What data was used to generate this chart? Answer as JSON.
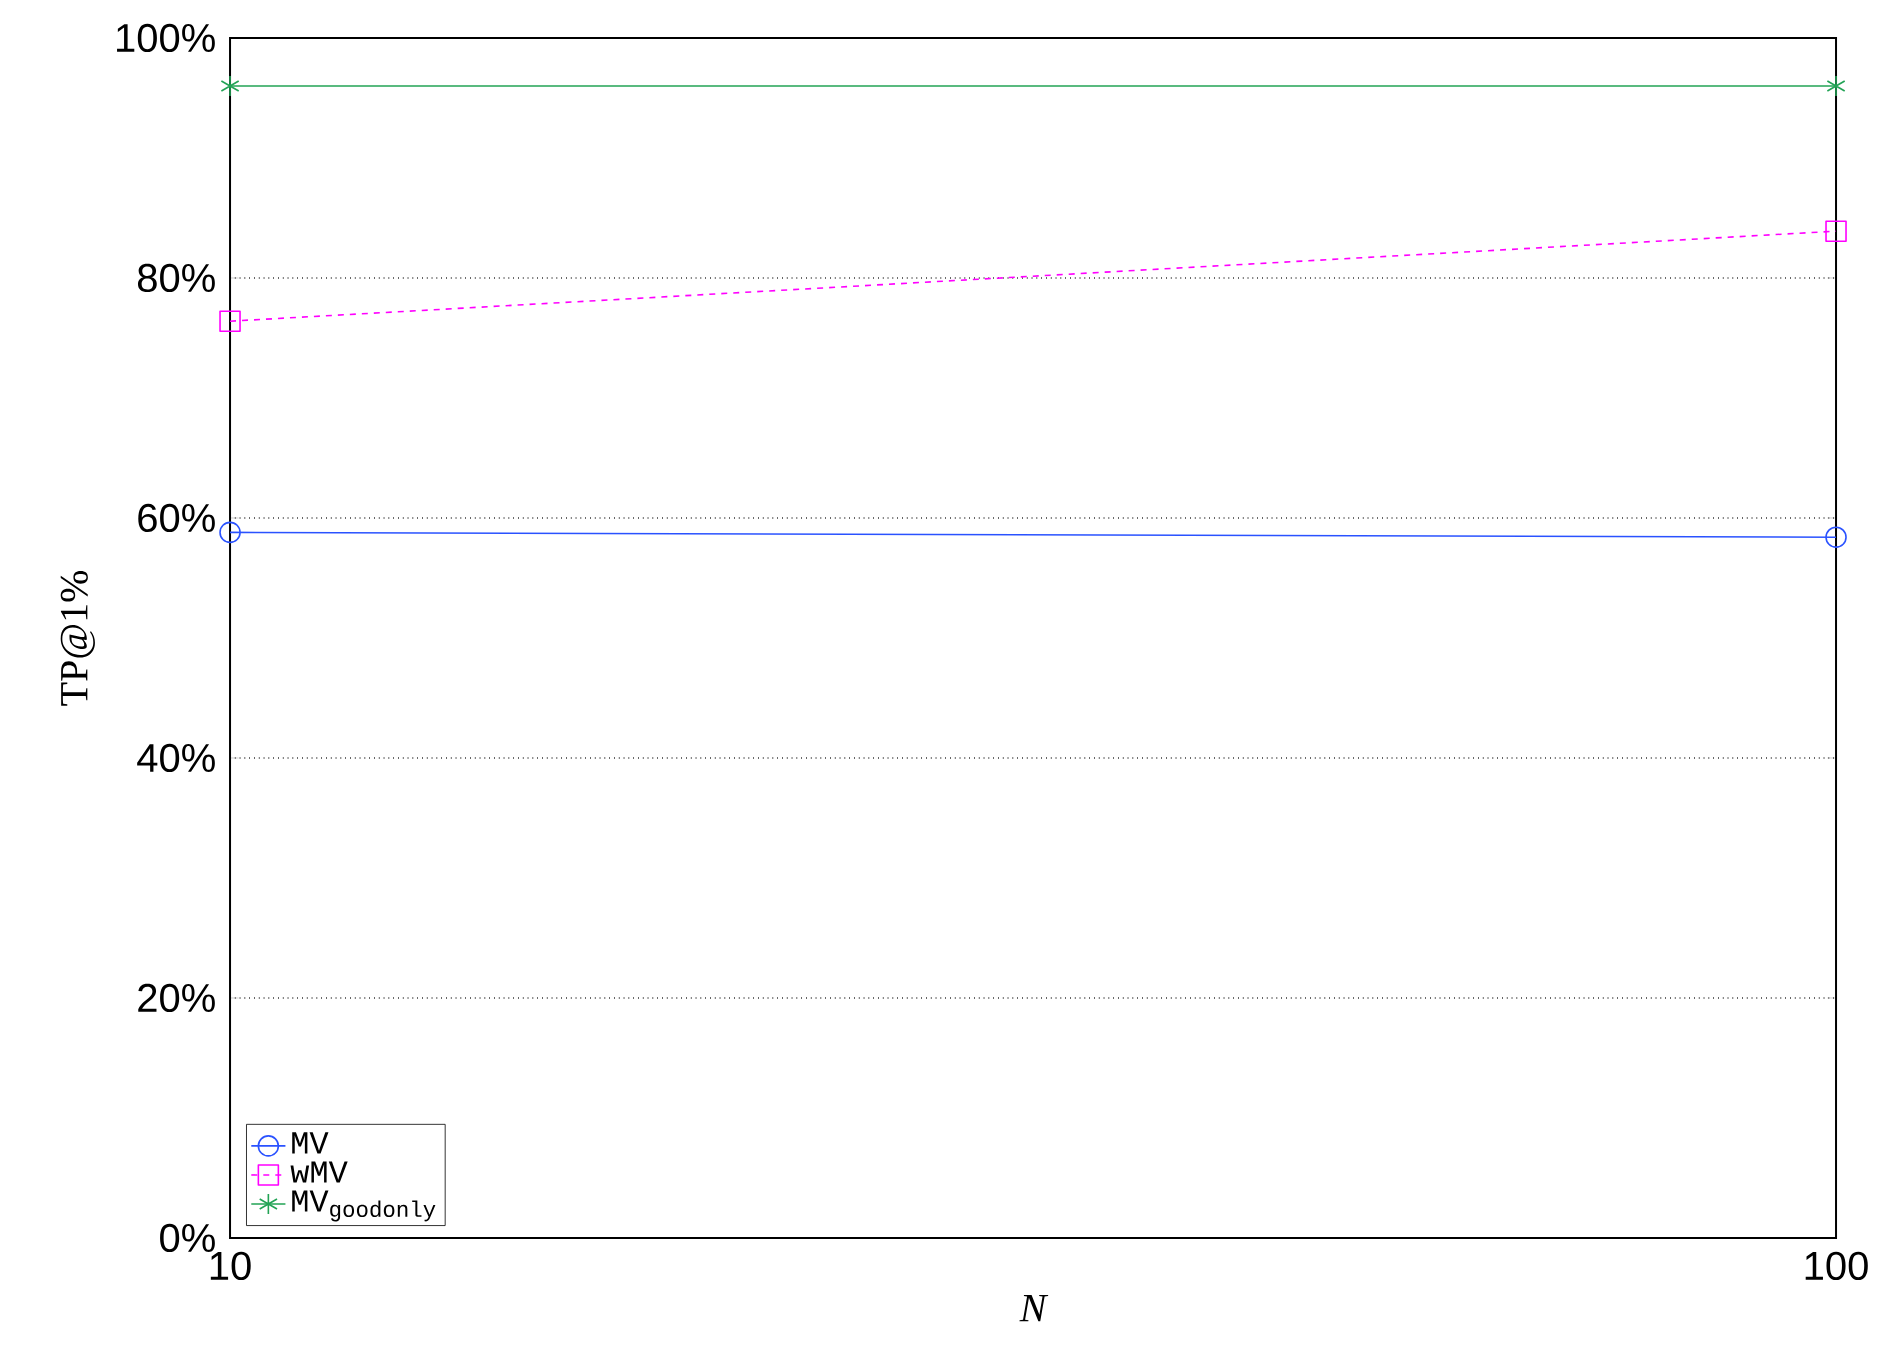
{
  "chart_data": {
    "type": "line",
    "xlabel": "N",
    "ylabel": "TP@1%",
    "x": [
      10,
      100
    ],
    "log": "x",
    "xlim": [
      10,
      100
    ],
    "xticks": [
      10,
      100
    ],
    "ylim": [
      0,
      100
    ],
    "yticks": [
      {
        "value": 0,
        "label": "0%"
      },
      {
        "value": 20,
        "label": "20%"
      },
      {
        "value": 40,
        "label": "40%"
      },
      {
        "value": 60,
        "label": "60%"
      },
      {
        "value": 80,
        "label": "80%"
      },
      {
        "value": 100,
        "label": "100%"
      }
    ],
    "grid": "y",
    "legend": "bottom left",
    "series": [
      {
        "name": "MV",
        "color": "#2a52ff",
        "values": [
          58.8,
          58.4
        ],
        "marker": "circle",
        "line_style": "solid"
      },
      {
        "name": "wMV",
        "color": "#ff00ff",
        "values": [
          76.4,
          83.9
        ],
        "marker": "square",
        "line_style": "dashed"
      },
      {
        "name": "MV$_{goodonly}$",
        "color": "#22a355",
        "values": [
          96.0,
          96.0
        ],
        "marker": "cross",
        "line_style": "solid"
      }
    ]
  }
}
